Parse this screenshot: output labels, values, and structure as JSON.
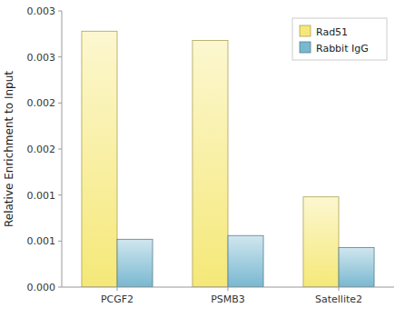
{
  "chart_data": {
    "type": "bar",
    "y_label": "Relative Enrichment to Input",
    "categories": [
      "PCGF2",
      "PSMB3",
      "Satellite2"
    ],
    "series": [
      {
        "name": "Rad51",
        "color": "#F5E878",
        "values": [
          0.00278,
          0.00268,
          0.00098
        ]
      },
      {
        "name": "Rabbit IgG",
        "color": "#78B8D0",
        "values": [
          0.00052,
          0.00056,
          0.00043
        ]
      }
    ],
    "ylim": [
      0,
      0.003
    ],
    "yticks": [
      {
        "value": 0.0,
        "label": "0.000"
      },
      {
        "value": 0.0005,
        "label": "0.001"
      },
      {
        "value": 0.001,
        "label": "0.001"
      },
      {
        "value": 0.0015,
        "label": "0.002"
      },
      {
        "value": 0.002,
        "label": "0.002"
      },
      {
        "value": 0.0025,
        "label": "0.003"
      },
      {
        "value": 0.003,
        "label": "0.003"
      }
    ],
    "grid": false,
    "legend": "upper right"
  }
}
